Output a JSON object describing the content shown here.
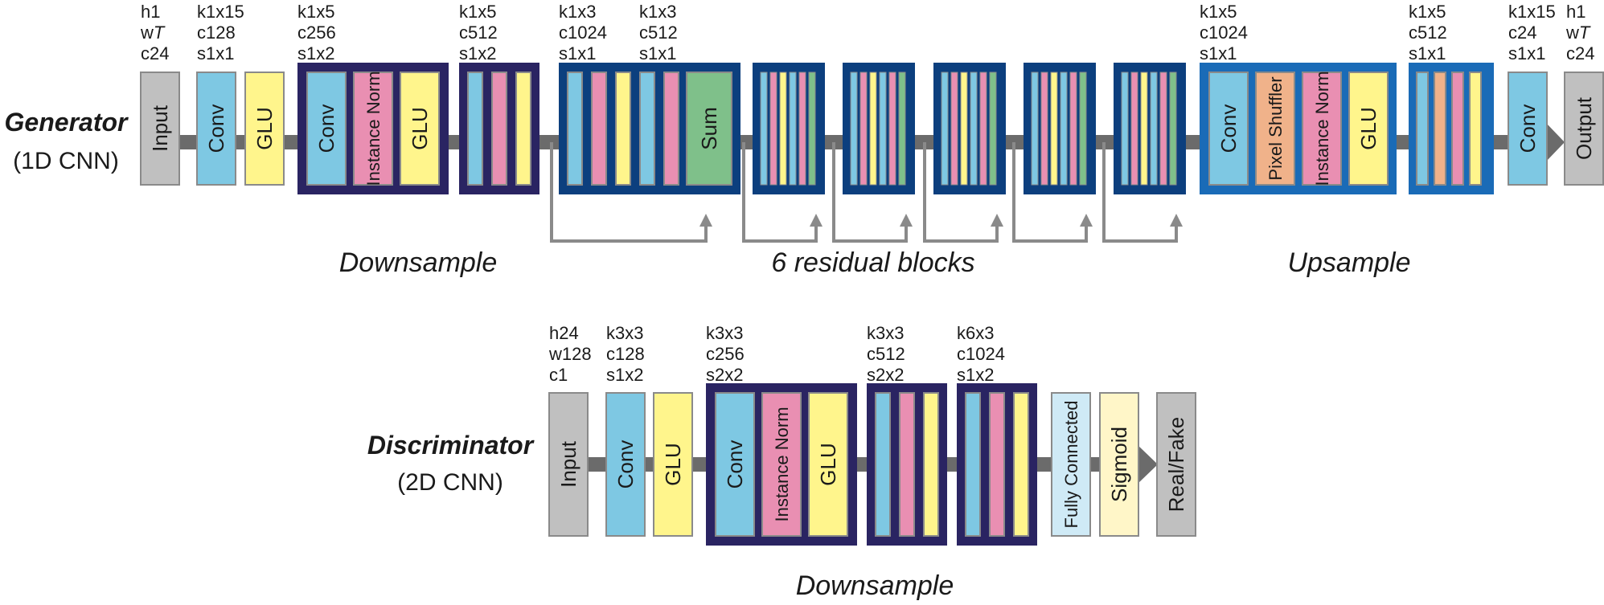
{
  "colors": {
    "conv": "#7ec8e3",
    "glu": "#fff58c",
    "norm": "#e98fb2",
    "shuffler": "#f0b28a",
    "sum": "#7fc08a",
    "io": "#c0c0c0",
    "fc": "#cfeaf6",
    "sigmoid": "#fff6c8",
    "dark_frame": "#2a2462",
    "res_frame": "#0c3f7e",
    "up_frame": "#1a6bb7",
    "connector": "#6b6b6b"
  },
  "generator": {
    "title": "Generator",
    "subtitle": "(1D CNN)",
    "input_label": "Input",
    "input_params": [
      "h1",
      "w",
      "c24"
    ],
    "input_params_T": "T",
    "conv1_label": "Conv",
    "conv1_params": [
      "k1x15",
      "c128",
      "s1x1"
    ],
    "glu1_label": "GLU",
    "down1_params": [
      "k1x5",
      "c256",
      "s1x2"
    ],
    "down1_conv": "Conv",
    "down1_norm": "Instance Norm",
    "down1_glu": "GLU",
    "down2_params": [
      "k1x5",
      "c512",
      "s1x2"
    ],
    "res_params_a": [
      "k1x3",
      "c1024",
      "s1x1"
    ],
    "res_params_b": [
      "k1x3",
      "c512",
      "s1x1"
    ],
    "res_sum": "Sum",
    "up1_params": [
      "k1x5",
      "c1024",
      "s1x1"
    ],
    "up1_conv": "Conv",
    "up1_shuffler": "Pixel Shuffler",
    "up1_norm": "Instance Norm",
    "up1_glu": "GLU",
    "up2_params": [
      "k1x5",
      "c512",
      "s1x1"
    ],
    "conv_out_params": [
      "k1x15",
      "c24",
      "s1x1"
    ],
    "conv_out_label": "Conv",
    "output_params": [
      "h1",
      "w",
      "c24"
    ],
    "output_params_T": "T",
    "output_label": "Output",
    "section_downsample": "Downsample",
    "section_residual": "6 residual blocks",
    "section_upsample": "Upsample"
  },
  "discriminator": {
    "title": "Discriminator",
    "subtitle": "(2D CNN)",
    "input_label": "Input",
    "input_params": [
      "h24",
      "w128",
      "c1"
    ],
    "conv1_label": "Conv",
    "conv1_params": [
      "k3x3",
      "c128",
      "s1x2"
    ],
    "glu1_label": "GLU",
    "down1_params": [
      "k3x3",
      "c256",
      "s2x2"
    ],
    "down1_conv": "Conv",
    "down1_norm": "Instance Norm",
    "down1_glu": "GLU",
    "down2_params": [
      "k3x3",
      "c512",
      "s2x2"
    ],
    "down3_params": [
      "k6x3",
      "c1024",
      "s1x2"
    ],
    "fc_label": "Fully Connected",
    "sigmoid_label": "Sigmoid",
    "output_label": "Real/Fake",
    "section_downsample": "Downsample"
  }
}
